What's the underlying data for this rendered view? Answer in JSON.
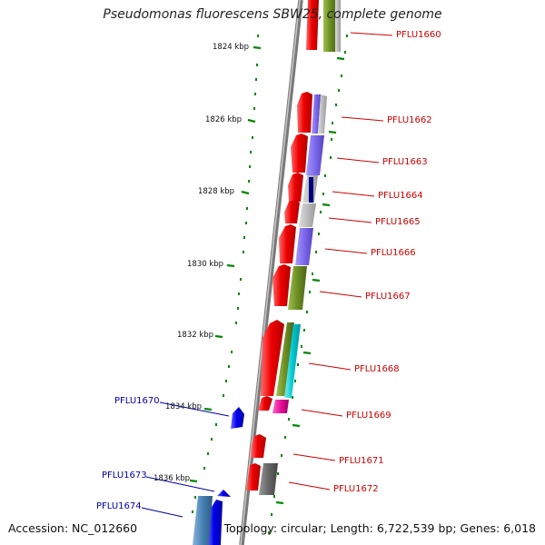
{
  "title": "Pseudomonas fluorescens SBW25, complete genome",
  "footer": {
    "accession": "Accession: NC_012660",
    "topology": "Topology: circular; Length: 6,722,539 bp; Genes: 6,018"
  },
  "axis_ticks": [
    "1824 kbp",
    "1826 kbp",
    "1828 kbp",
    "1830 kbp",
    "1832 kbp",
    "1834 kbp",
    "1836 kbp"
  ],
  "genes_right": [
    "PFLU1660",
    "PFLU1662",
    "PFLU1663",
    "PFLU1664",
    "PFLU1665",
    "PFLU1666",
    "PFLU1667",
    "PFLU1668",
    "PFLU1669",
    "PFLU1671",
    "PFLU1672"
  ],
  "genes_left": [
    "PFLU1670",
    "PFLU1673",
    "PFLU1674"
  ],
  "colors": {
    "forward_cds": "#ee0000",
    "reverse_cds": "#0000ee",
    "label_right": "#cc0000",
    "label_left": "#0000aa",
    "tick": "#008800",
    "backbone": "#888888",
    "cog_olive": "#6b8e23",
    "cog_slate": "#7b68ee",
    "cog_gray": "#bbbbbb",
    "cog_cyan": "#00c8d0",
    "cog_magenta": "#e8109a",
    "cog_steel": "#4682b4"
  }
}
